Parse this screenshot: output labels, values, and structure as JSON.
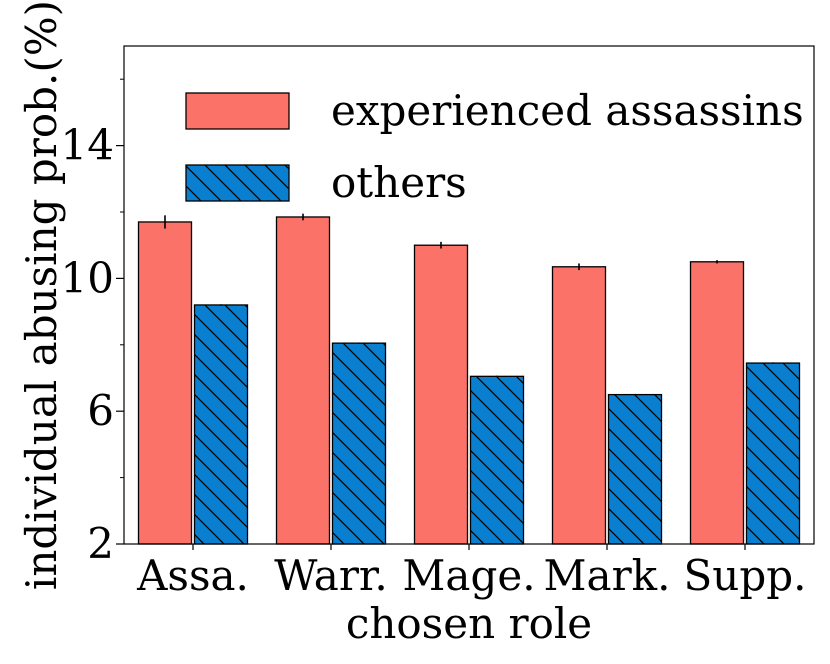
{
  "chart_data": {
    "type": "bar",
    "title": "",
    "xlabel": "chosen role",
    "ylabel": "individual abusing prob.(%)",
    "categories": [
      "Assa.",
      "Warr.",
      "Mage.",
      "Mark.",
      "Supp."
    ],
    "series": [
      {
        "name": "experienced assassins",
        "values": [
          11.7,
          11.85,
          11.0,
          10.35,
          10.5
        ],
        "errors": [
          0.2,
          0.1,
          0.1,
          0.1,
          0.05
        ],
        "color": "#fa7268",
        "hatch": false
      },
      {
        "name": "others",
        "values": [
          9.2,
          8.05,
          7.05,
          6.5,
          7.45
        ],
        "errors": [
          0.02,
          0.02,
          0.02,
          0.02,
          0.02
        ],
        "color": "#0a7fcf",
        "hatch": true
      }
    ],
    "ylim": [
      2,
      17
    ],
    "yticks": [
      2,
      6,
      10,
      14
    ],
    "ytick_labels": [
      "2",
      "6",
      "10",
      "14"
    ],
    "minor_yticks": [
      4,
      8,
      12,
      16
    ],
    "grid": false,
    "legend_position": "top-left"
  }
}
